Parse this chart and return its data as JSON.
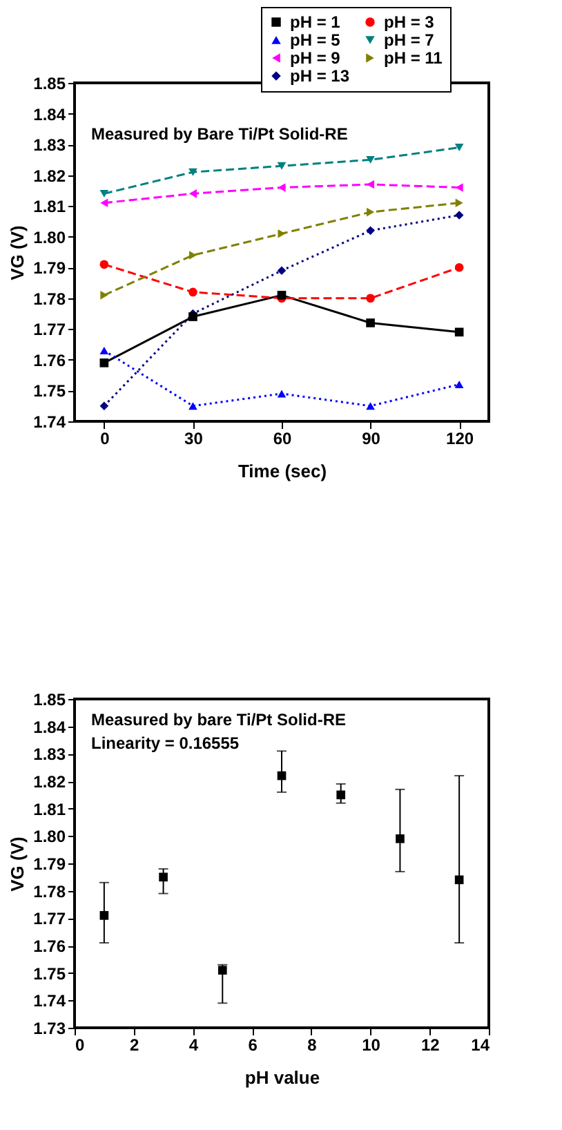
{
  "chart_data": [
    {
      "type": "line",
      "xlabel": "Time (sec)",
      "ylabel": "VG (V)",
      "annotations": [
        "Measured by Bare Ti/Pt Solid-RE"
      ],
      "x": [
        0,
        30,
        60,
        90,
        120
      ],
      "xlim": [
        -10,
        130
      ],
      "xticks": [
        0,
        30,
        60,
        90,
        120
      ],
      "ylim": [
        1.74,
        1.85
      ],
      "yticks": [
        1.74,
        1.75,
        1.76,
        1.77,
        1.78,
        1.79,
        {
          "value": 1.8,
          "label": "1.80"
        },
        1.81,
        1.82,
        1.83,
        1.84,
        1.85
      ],
      "grid": false,
      "legend": "top right",
      "series": [
        {
          "name": "pH = 1",
          "color": "#000000",
          "marker": "square",
          "line_style": "solid",
          "values": [
            1.759,
            1.774,
            1.781,
            1.772,
            1.769
          ]
        },
        {
          "name": "pH = 3",
          "color": "#ff0000",
          "marker": "circle",
          "line_style": "dashed",
          "values": [
            1.791,
            1.782,
            1.78,
            1.78,
            1.79
          ]
        },
        {
          "name": "pH = 5",
          "color": "#0000ff",
          "marker": "triangle",
          "line_style": "dotted",
          "values": [
            1.763,
            1.745,
            1.749,
            1.745,
            1.752
          ]
        },
        {
          "name": "pH = 7",
          "color": "#008080",
          "marker": "triangle-down",
          "line_style": "dashed",
          "values": [
            1.814,
            1.821,
            1.823,
            1.825,
            1.829
          ]
        },
        {
          "name": "pH = 9",
          "color": "#ff00ff",
          "marker": "triangle-left",
          "line_style": "dashed",
          "values": [
            1.811,
            1.814,
            1.816,
            1.817,
            1.816
          ]
        },
        {
          "name": "pH = 11",
          "color": "#808000",
          "marker": "triangle-right",
          "line_style": "dashed",
          "values": [
            1.781,
            1.794,
            1.801,
            1.808,
            1.811
          ]
        },
        {
          "name": "pH = 13",
          "color": "#000080",
          "marker": "diamond",
          "line_style": "dotted",
          "values": [
            1.745,
            1.775,
            1.789,
            1.802,
            1.807
          ]
        }
      ]
    },
    {
      "type": "scatter",
      "xlabel": "pH value",
      "ylabel": "VG (V)",
      "annotations": [
        "Measured by bare Ti/Pt Solid-RE",
        "Linearity = 0.16555"
      ],
      "x": [
        1,
        3,
        5,
        7,
        9,
        11,
        13
      ],
      "xlim": [
        0,
        14
      ],
      "xticks": [
        0,
        2,
        4,
        6,
        8,
        10,
        12,
        14
      ],
      "ylim": [
        1.73,
        1.85
      ],
      "yticks": [
        1.73,
        1.74,
        1.75,
        1.76,
        1.77,
        1.78,
        1.79,
        {
          "value": 1.8,
          "label": "1.80"
        },
        1.81,
        1.82,
        1.83,
        1.84,
        1.85
      ],
      "grid": false,
      "legend": false,
      "marker": "square",
      "series": [
        {
          "color": "#000000",
          "values": [
            1.771,
            1.785,
            1.751,
            1.822,
            1.815,
            1.799,
            1.784
          ],
          "errors": [
            [
              1.761,
              1.783
            ],
            [
              1.779,
              1.788
            ],
            [
              1.739,
              1.753
            ],
            [
              1.816,
              1.831
            ],
            [
              1.812,
              1.819
            ],
            [
              1.787,
              1.817
            ],
            [
              1.761,
              1.822
            ]
          ]
        }
      ]
    }
  ]
}
